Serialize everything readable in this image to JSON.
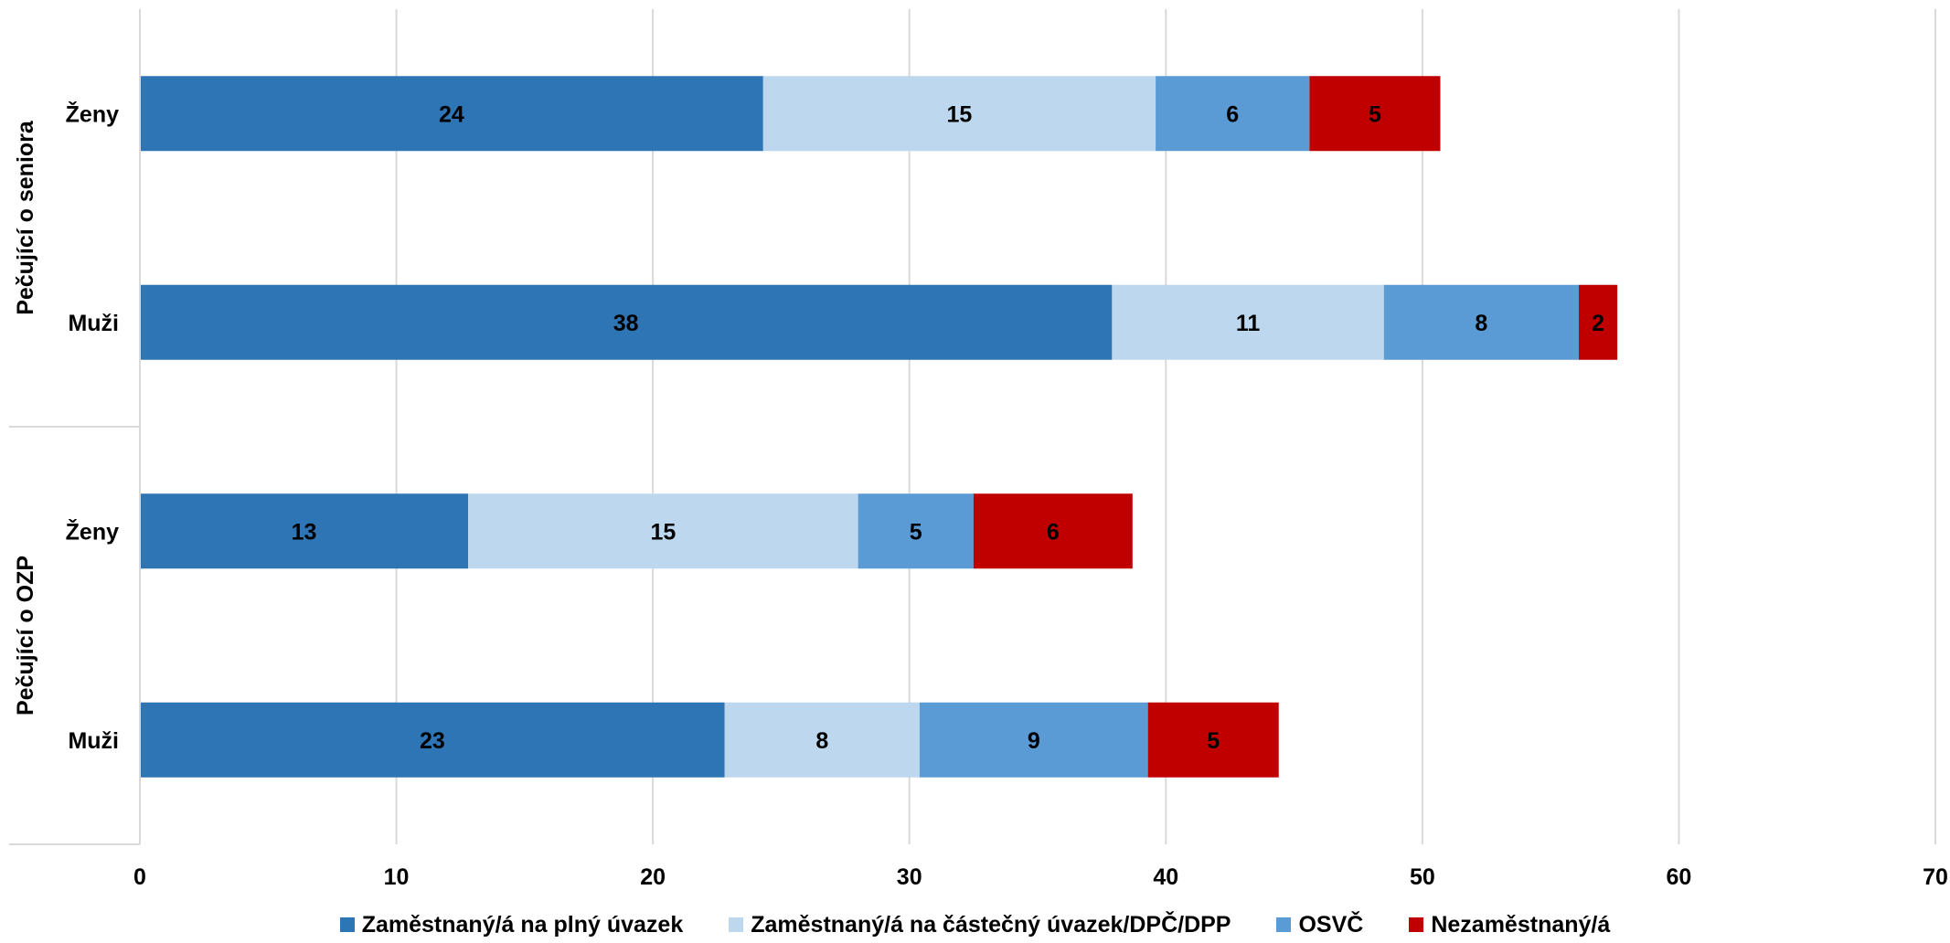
{
  "chart_data": {
    "type": "bar",
    "orientation": "horizontal",
    "stacked": true,
    "title": "",
    "xlabel": "",
    "ylabel": "",
    "xlim": [
      0,
      70
    ],
    "x_ticks": [
      0,
      10,
      20,
      30,
      40,
      50,
      60,
      70
    ],
    "grid": true,
    "legend_position": "bottom",
    "groups": [
      {
        "name": "Pečující o seniora",
        "categories": [
          "Ženy",
          "Muži"
        ]
      },
      {
        "name": "Pečující o OZP",
        "categories": [
          "Ženy",
          "Muži"
        ]
      }
    ],
    "categories": [
      "Ženy",
      "Muži",
      "Ženy",
      "Muži"
    ],
    "series": [
      {
        "name": "Zaměstnaný/á na plný úvazek",
        "color": "#2E75B6",
        "values": [
          24.3,
          37.9,
          12.8,
          22.8
        ],
        "labels": [
          "24",
          "38",
          "13",
          "23"
        ]
      },
      {
        "name": "Zaměstnaný/á na částečný úvazek/DPČ/DPP",
        "color": "#BDD7EE",
        "values": [
          15.3,
          10.6,
          15.2,
          7.6
        ],
        "labels": [
          "15",
          "11",
          "15",
          "8"
        ]
      },
      {
        "name": "OSVČ",
        "color": "#5B9BD5",
        "values": [
          6.0,
          7.6,
          4.5,
          8.9
        ],
        "labels": [
          "6",
          "8",
          "5",
          "9"
        ]
      },
      {
        "name": "Nezaměstnaný/á",
        "color": "#C00000",
        "values": [
          5.1,
          1.5,
          6.2,
          5.1
        ],
        "labels": [
          "5",
          "2",
          "6",
          "5"
        ]
      }
    ]
  }
}
